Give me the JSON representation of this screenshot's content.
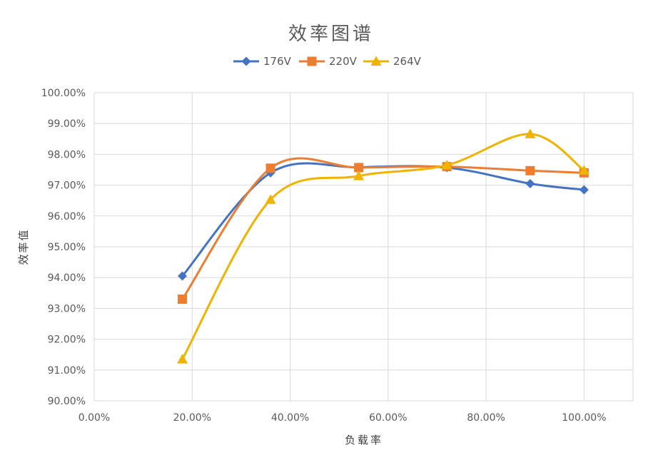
{
  "chart_data": {
    "type": "scatter",
    "title": "效率图谱",
    "xlabel": "负载率",
    "ylabel": "效率值",
    "xlim": [
      0,
      1.1
    ],
    "ylim": [
      0.9,
      1.0
    ],
    "x_ticks": [
      "0.00%",
      "20.00%",
      "40.00%",
      "60.00%",
      "80.00%",
      "100.00%"
    ],
    "y_ticks": [
      "100.00%",
      "99.00%",
      "98.00%",
      "97.00%",
      "96.00%",
      "95.00%",
      "94.00%",
      "93.00%",
      "92.00%",
      "91.00%",
      "90.00%"
    ],
    "grid": true,
    "smooth_lines": true,
    "legend_position": "top",
    "series": [
      {
        "name": "176V",
        "color": "#4472C4",
        "marker": "diamond",
        "x": [
          0.18,
          0.36,
          0.54,
          0.72,
          0.89,
          1.0
        ],
        "y": [
          0.9405,
          0.974,
          0.9758,
          0.9757,
          0.9705,
          0.9685
        ]
      },
      {
        "name": "220V",
        "color": "#ED7D31",
        "marker": "square",
        "x": [
          0.18,
          0.36,
          0.54,
          0.72,
          0.89,
          1.0
        ],
        "y": [
          0.933,
          0.9755,
          0.9757,
          0.976,
          0.9747,
          0.974
        ]
      },
      {
        "name": "264V",
        "color": "#F0B400",
        "marker": "triangle",
        "x": [
          0.18,
          0.36,
          0.54,
          0.72,
          0.89,
          1.0
        ],
        "y": [
          0.9135,
          0.9653,
          0.973,
          0.9765,
          0.9866,
          0.9748
        ]
      }
    ]
  }
}
